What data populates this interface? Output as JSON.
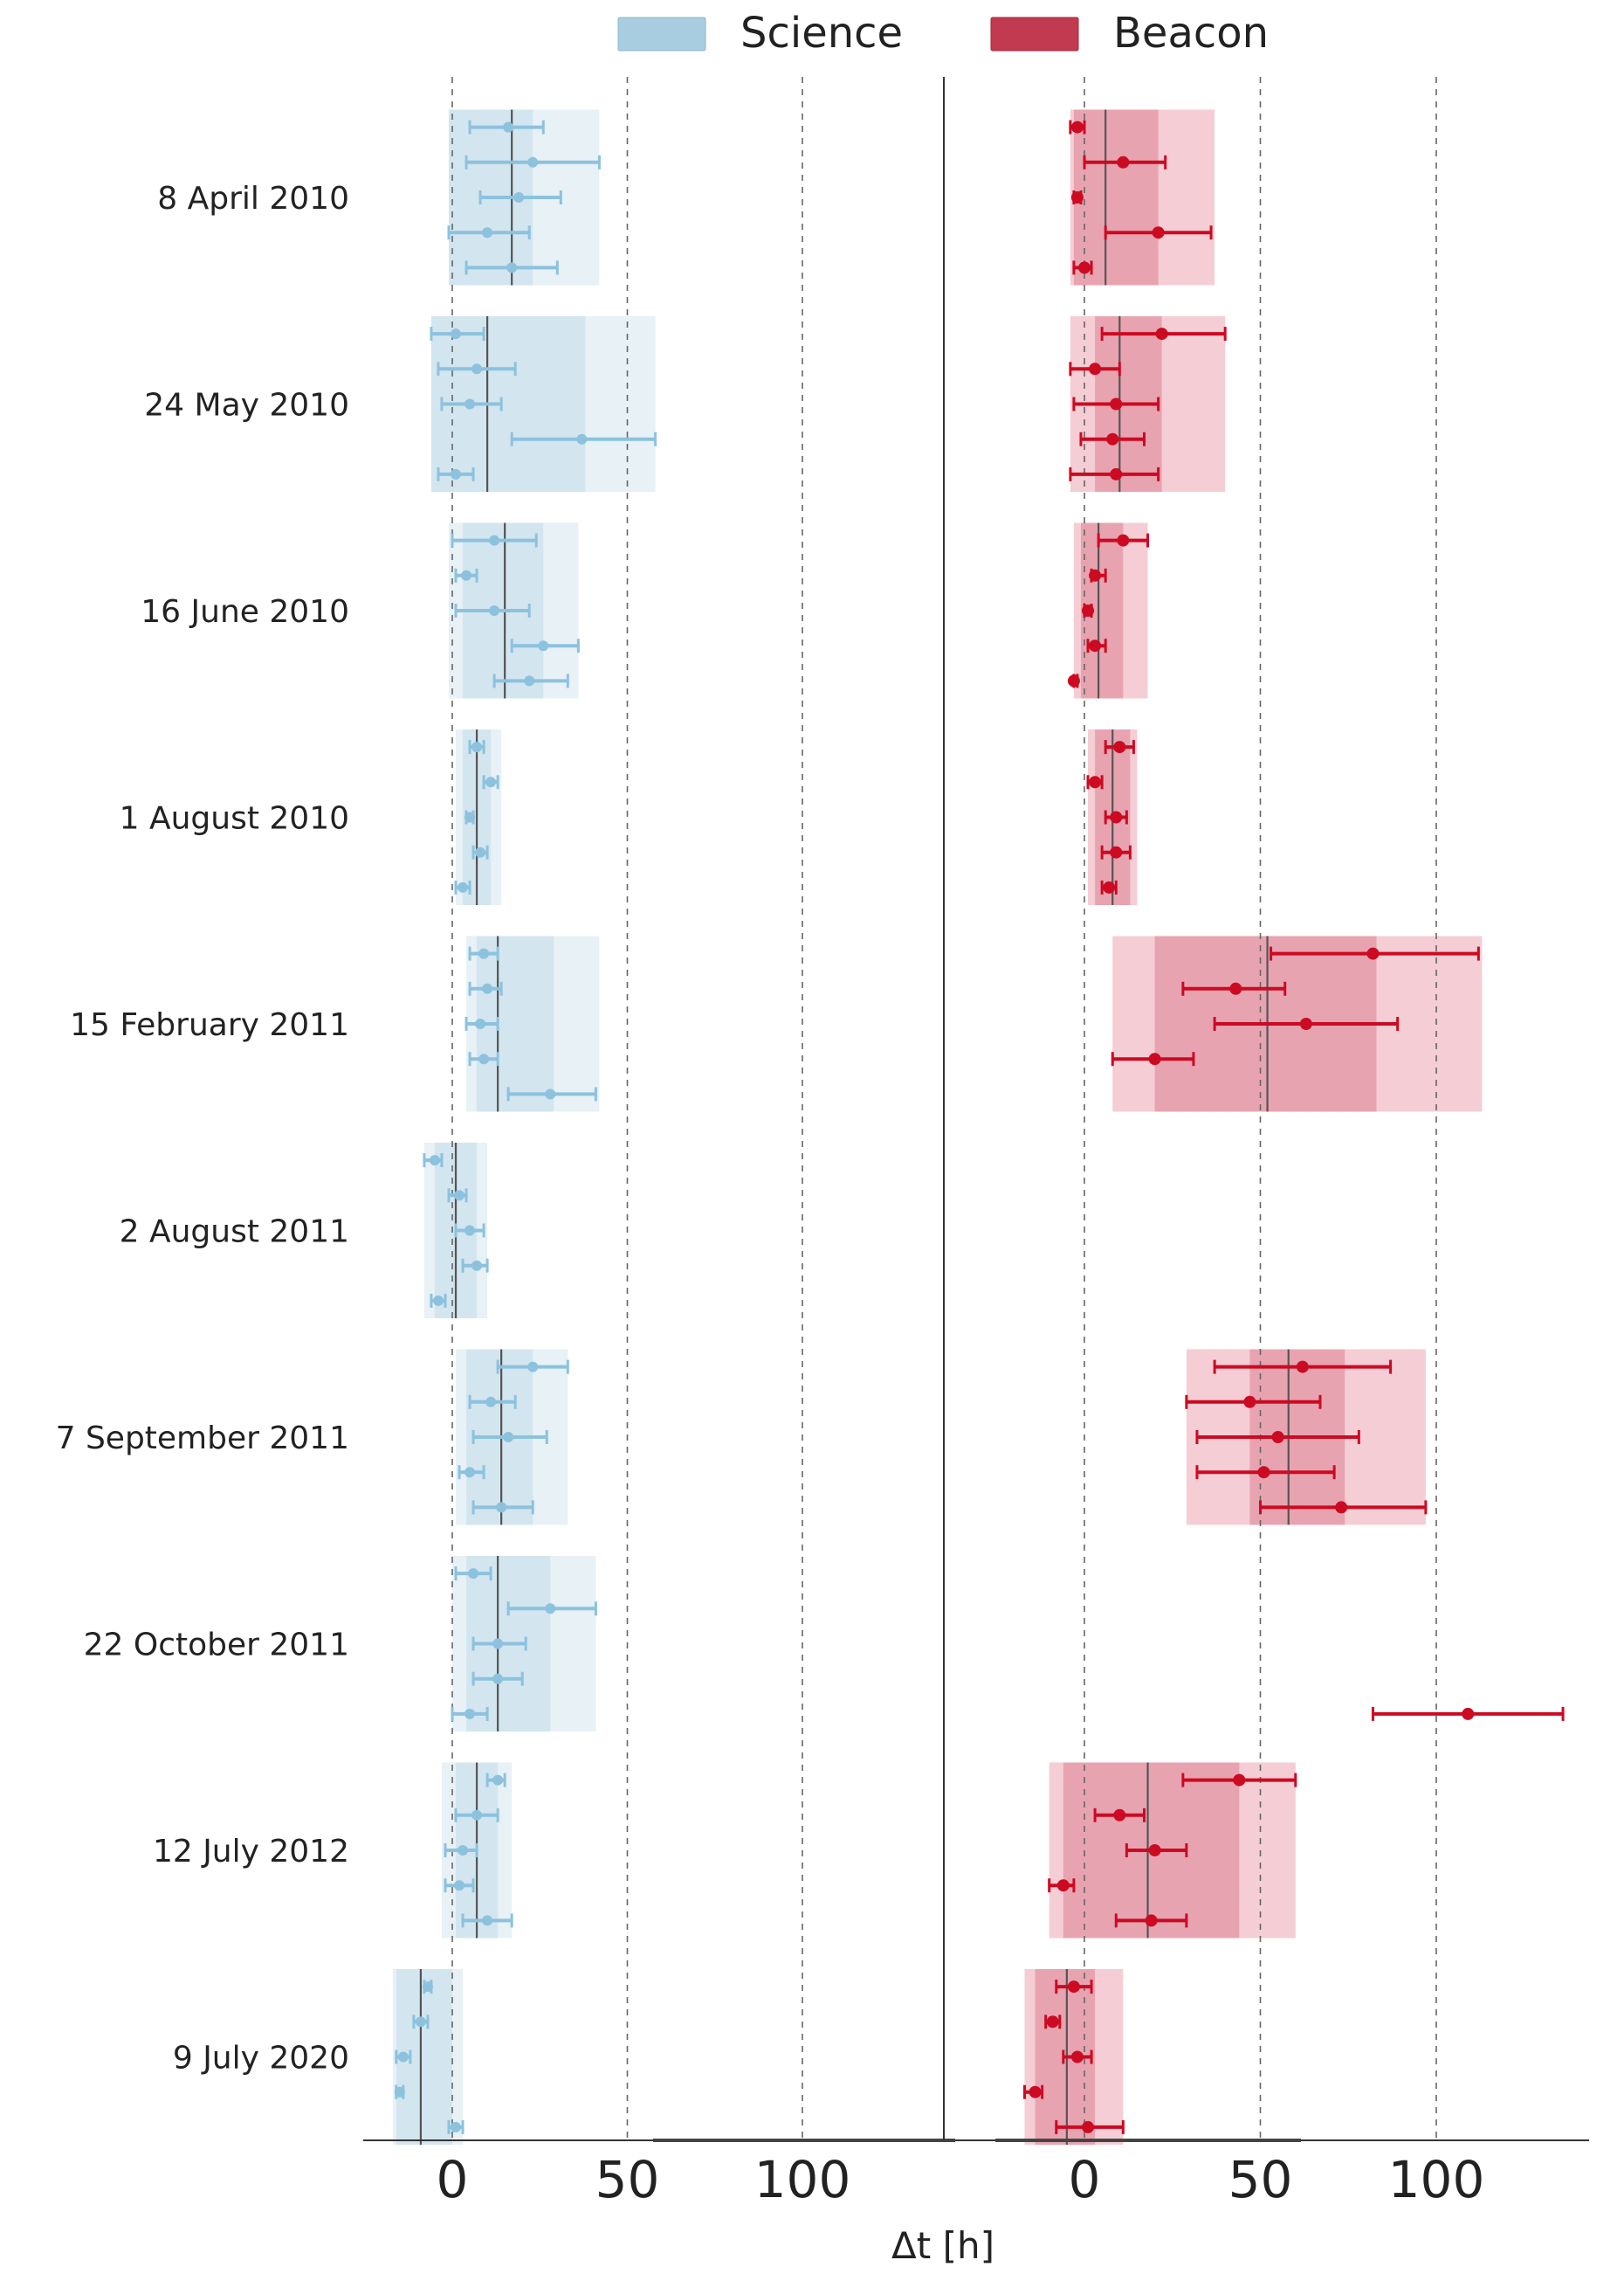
{
  "chart_data": {
    "type": "scatter",
    "title": "",
    "xlabel": "Δt [h]",
    "legend": {
      "placement": "top-center",
      "entries": [
        {
          "name": "Science",
          "color": "#a9cde0"
        },
        {
          "name": "Beacon",
          "color": "#c23a4f"
        }
      ]
    },
    "colors": {
      "science_point": "#8cc2de",
      "beacon_point": "#cc0a22",
      "median_line": "#555555",
      "grid": "#666666"
    },
    "panels": [
      {
        "name": "Science",
        "xlim": [
          -25,
          145
        ],
        "xticks": [
          0,
          50,
          100
        ],
        "tick_labels": [
          "0",
          "50",
          "100"
        ],
        "gridlines": [
          0,
          50,
          100
        ]
      },
      {
        "name": "Beacon",
        "xlim": [
          -25,
          145
        ],
        "xticks": [
          0,
          50,
          100
        ],
        "tick_labels": [
          "0",
          "50",
          "100"
        ],
        "gridlines": [
          0,
          50,
          100
        ]
      }
    ],
    "events": [
      {
        "label": "8 April 2010",
        "science": {
          "median": 17,
          "band_inner": [
            -1,
            23
          ],
          "band_outer": [
            -1,
            42
          ],
          "points": [
            {
              "x": 16,
              "lo": 5,
              "hi": 26
            },
            {
              "x": 23,
              "lo": 4,
              "hi": 42
            },
            {
              "x": 19,
              "lo": 8,
              "hi": 31
            },
            {
              "x": 10,
              "lo": -1,
              "hi": 22
            },
            {
              "x": 17,
              "lo": 4,
              "hi": 30
            }
          ]
        },
        "beacon": {
          "median": 6,
          "band_inner": [
            -3,
            21
          ],
          "band_outer": [
            -4,
            37
          ],
          "points": [
            {
              "x": -2,
              "lo": -4,
              "hi": 0
            },
            {
              "x": 11,
              "lo": 0,
              "hi": 23
            },
            {
              "x": -2,
              "lo": -3,
              "hi": -1
            },
            {
              "x": 21,
              "lo": 6,
              "hi": 36
            },
            {
              "x": 0,
              "lo": -3,
              "hi": 2
            }
          ]
        }
      },
      {
        "label": "24 May 2010",
        "science": {
          "median": 10,
          "band_inner": [
            -6,
            38
          ],
          "band_outer": [
            -6,
            58
          ],
          "points": [
            {
              "x": 1,
              "lo": -6,
              "hi": 9
            },
            {
              "x": 7,
              "lo": -4,
              "hi": 18
            },
            {
              "x": 5,
              "lo": -3,
              "hi": 14
            },
            {
              "x": 37,
              "lo": 17,
              "hi": 58
            },
            {
              "x": 1,
              "lo": -4,
              "hi": 6
            }
          ]
        },
        "beacon": {
          "median": 10,
          "band_inner": [
            3,
            22
          ],
          "band_outer": [
            -4,
            40
          ],
          "points": [
            {
              "x": 22,
              "lo": 5,
              "hi": 40
            },
            {
              "x": 3,
              "lo": -4,
              "hi": 10
            },
            {
              "x": 9,
              "lo": -3,
              "hi": 21
            },
            {
              "x": 8,
              "lo": -1,
              "hi": 17
            },
            {
              "x": 9,
              "lo": -4,
              "hi": 21
            }
          ]
        }
      },
      {
        "label": "16 June 2010",
        "science": {
          "median": 15,
          "band_inner": [
            3,
            26
          ],
          "band_outer": [
            -1,
            36
          ],
          "points": [
            {
              "x": 12,
              "lo": 0,
              "hi": 24
            },
            {
              "x": 4,
              "lo": 1,
              "hi": 7
            },
            {
              "x": 12,
              "lo": 1,
              "hi": 22
            },
            {
              "x": 26,
              "lo": 17,
              "hi": 36
            },
            {
              "x": 22,
              "lo": 12,
              "hi": 33
            }
          ]
        },
        "beacon": {
          "median": 4,
          "band_inner": [
            -1,
            11
          ],
          "band_outer": [
            -3,
            18
          ],
          "points": [
            {
              "x": 11,
              "lo": 4,
              "hi": 18
            },
            {
              "x": 3,
              "lo": 2,
              "hi": 6
            },
            {
              "x": 1,
              "lo": 0,
              "hi": 2
            },
            {
              "x": 3,
              "lo": 1,
              "hi": 6
            },
            {
              "x": -3,
              "lo": -3,
              "hi": -2
            }
          ]
        }
      },
      {
        "label": "1 August 2010",
        "science": {
          "median": 7,
          "band_inner": [
            3,
            11
          ],
          "band_outer": [
            1,
            14
          ],
          "points": [
            {
              "x": 7,
              "lo": 5,
              "hi": 9
            },
            {
              "x": 11,
              "lo": 9,
              "hi": 13
            },
            {
              "x": 5,
              "lo": 4,
              "hi": 6
            },
            {
              "x": 8,
              "lo": 6,
              "hi": 10
            },
            {
              "x": 3,
              "lo": 1,
              "hi": 5
            }
          ]
        },
        "beacon": {
          "median": 8,
          "band_inner": [
            3,
            13
          ],
          "band_outer": [
            1,
            15
          ],
          "points": [
            {
              "x": 10,
              "lo": 6,
              "hi": 14
            },
            {
              "x": 3,
              "lo": 1,
              "hi": 5
            },
            {
              "x": 9,
              "lo": 6,
              "hi": 12
            },
            {
              "x": 9,
              "lo": 5,
              "hi": 13
            },
            {
              "x": 7,
              "lo": 5,
              "hi": 9
            }
          ]
        }
      },
      {
        "label": "15 February 2011",
        "science": {
          "median": 13,
          "band_inner": [
            7,
            29
          ],
          "band_outer": [
            4,
            42
          ],
          "points": [
            {
              "x": 9,
              "lo": 5,
              "hi": 13
            },
            {
              "x": 10,
              "lo": 5,
              "hi": 14
            },
            {
              "x": 8,
              "lo": 4,
              "hi": 13
            },
            {
              "x": 9,
              "lo": 5,
              "hi": 13
            },
            {
              "x": 28,
              "lo": 16,
              "hi": 41
            }
          ]
        },
        "beacon": {
          "median": 52,
          "band_inner": [
            20,
            83
          ],
          "band_outer": [
            8,
            113
          ],
          "points": [
            {
              "x": 82,
              "lo": 53,
              "hi": 112
            },
            {
              "x": 43,
              "lo": 28,
              "hi": 57
            },
            {
              "x": 63,
              "lo": 37,
              "hi": 89
            },
            {
              "x": 20,
              "lo": 8,
              "hi": 31
            }
          ]
        }
      },
      {
        "label": "2 August 2011",
        "science": {
          "median": 1,
          "band_inner": [
            -5,
            7
          ],
          "band_outer": [
            -8,
            10
          ],
          "points": [
            {
              "x": -5,
              "lo": -8,
              "hi": -3
            },
            {
              "x": 2,
              "lo": -1,
              "hi": 4
            },
            {
              "x": 5,
              "lo": 1,
              "hi": 9
            },
            {
              "x": 7,
              "lo": 3,
              "hi": 10
            },
            {
              "x": -4,
              "lo": -6,
              "hi": -2
            }
          ]
        },
        "beacon": {
          "median": null,
          "band_inner": null,
          "band_outer": null,
          "points": []
        }
      },
      {
        "label": "7 September 2011",
        "science": {
          "median": 14,
          "band_inner": [
            4,
            23
          ],
          "band_outer": [
            1,
            33
          ],
          "points": [
            {
              "x": 23,
              "lo": 13,
              "hi": 33
            },
            {
              "x": 11,
              "lo": 5,
              "hi": 18
            },
            {
              "x": 16,
              "lo": 6,
              "hi": 27
            },
            {
              "x": 5,
              "lo": 2,
              "hi": 9
            },
            {
              "x": 14,
              "lo": 6,
              "hi": 23
            }
          ]
        },
        "beacon": {
          "median": 58,
          "band_inner": [
            47,
            74
          ],
          "band_outer": [
            29,
            97
          ],
          "points": [
            {
              "x": 62,
              "lo": 37,
              "hi": 87
            },
            {
              "x": 47,
              "lo": 29,
              "hi": 67
            },
            {
              "x": 55,
              "lo": 32,
              "hi": 78
            },
            {
              "x": 51,
              "lo": 32,
              "hi": 71
            },
            {
              "x": 73,
              "lo": 50,
              "hi": 97
            }
          ]
        }
      },
      {
        "label": "22 October 2011",
        "science": {
          "median": 13,
          "band_inner": [
            4,
            28
          ],
          "band_outer": [
            0,
            41
          ],
          "points": [
            {
              "x": 6,
              "lo": 1,
              "hi": 11
            },
            {
              "x": 28,
              "lo": 16,
              "hi": 41
            },
            {
              "x": 13,
              "lo": 6,
              "hi": 21
            },
            {
              "x": 13,
              "lo": 6,
              "hi": 20
            },
            {
              "x": 5,
              "lo": 0,
              "hi": 10
            }
          ]
        },
        "beacon": {
          "median": null,
          "band_inner": null,
          "band_outer": null,
          "points": [
            {
              "x": 109,
              "lo": 82,
              "hi": 136
            }
          ]
        }
      },
      {
        "label": "12 July 2012",
        "science": {
          "median": 7,
          "band_inner": [
            1,
            13
          ],
          "band_outer": [
            -3,
            17
          ],
          "points": [
            {
              "x": 13,
              "lo": 10,
              "hi": 15
            },
            {
              "x": 7,
              "lo": 1,
              "hi": 13
            },
            {
              "x": 3,
              "lo": -2,
              "hi": 7
            },
            {
              "x": 2,
              "lo": -2,
              "hi": 6
            },
            {
              "x": 10,
              "lo": 3,
              "hi": 17
            }
          ]
        },
        "beacon": {
          "median": 18,
          "band_inner": [
            -6,
            44
          ],
          "band_outer": [
            -10,
            60
          ],
          "points": [
            {
              "x": 44,
              "lo": 28,
              "hi": 60
            },
            {
              "x": 10,
              "lo": 3,
              "hi": 17
            },
            {
              "x": 20,
              "lo": 12,
              "hi": 29
            },
            {
              "x": -6,
              "lo": -10,
              "hi": -3
            },
            {
              "x": 19,
              "lo": 9,
              "hi": 29
            }
          ]
        }
      },
      {
        "label": "9 July 2020",
        "science": {
          "median": -9,
          "band_inner": [
            -16,
            0
          ],
          "band_outer": [
            -17,
            3
          ],
          "points": [
            {
              "x": -7,
              "lo": -8,
              "hi": -6
            },
            {
              "x": -9,
              "lo": -11,
              "hi": -7
            },
            {
              "x": -14,
              "lo": -16,
              "hi": -12
            },
            {
              "x": -15,
              "lo": -16,
              "hi": -14
            },
            {
              "x": 1,
              "lo": -1,
              "hi": 3
            }
          ]
        },
        "beacon": {
          "median": -5,
          "band_inner": [
            -14,
            3
          ],
          "band_outer": [
            -17,
            11
          ],
          "points": [
            {
              "x": -3,
              "lo": -8,
              "hi": 2
            },
            {
              "x": -9,
              "lo": -11,
              "hi": -7
            },
            {
              "x": -2,
              "lo": -6,
              "hi": 2
            },
            {
              "x": -14,
              "lo": -17,
              "hi": -12
            },
            {
              "x": 1,
              "lo": -8,
              "hi": 11
            }
          ]
        }
      }
    ]
  }
}
